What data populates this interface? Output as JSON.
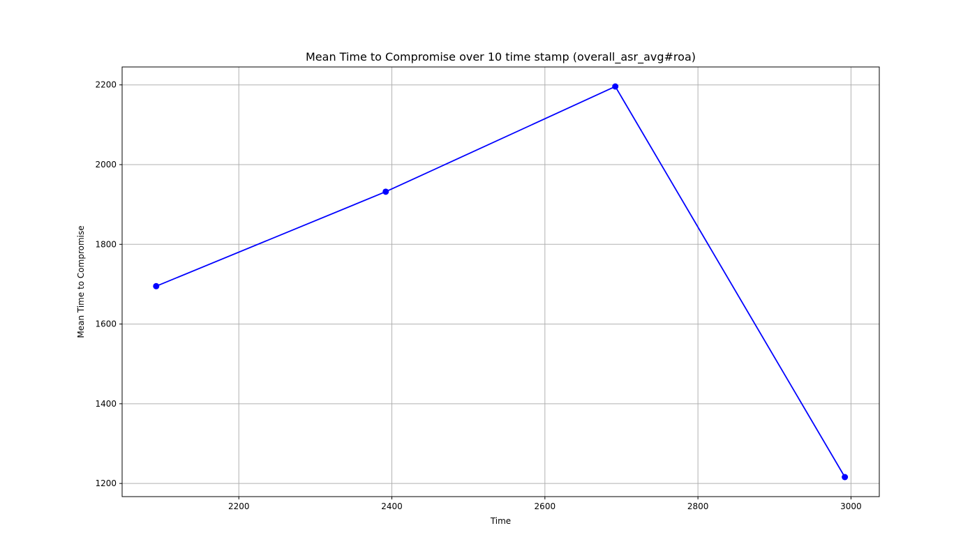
{
  "chart_data": {
    "type": "line",
    "title": "Mean Time to Compromise over 10 time stamp (overall_asr_avg#roa)",
    "xlabel": "Time",
    "ylabel": "Mean Time to Compromise",
    "xlim": [
      2047.5,
      3037
    ],
    "ylim": [
      1167,
      2245
    ],
    "xticks": [
      2200,
      2400,
      2600,
      2800,
      3000
    ],
    "yticks": [
      1200,
      1400,
      1600,
      1800,
      2000,
      2200
    ],
    "grid": true,
    "series": [
      {
        "color": "#0000ff",
        "marker": "circle",
        "x": [
          2092,
          2392,
          2692,
          2992
        ],
        "y": [
          1695,
          1932,
          2196,
          1216
        ]
      }
    ]
  }
}
